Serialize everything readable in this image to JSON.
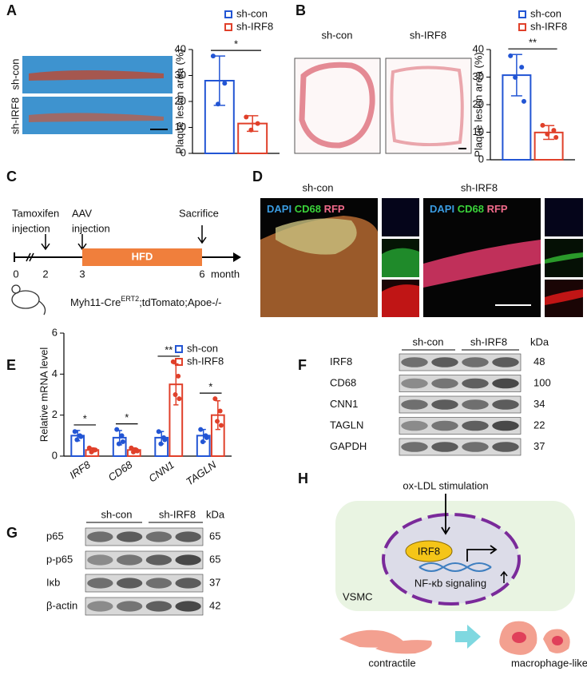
{
  "panel_labels": [
    "A",
    "B",
    "C",
    "D",
    "E",
    "F",
    "G",
    "H"
  ],
  "panel_a": {
    "image_labels": [
      "sh-con",
      "sh-IRF8"
    ]
  },
  "panel_b": {
    "image_labels": [
      "sh-con",
      "sh-IRF8"
    ]
  },
  "panel_c": {
    "events": [
      {
        "lines": [
          "Tamoxifen",
          "injection"
        ]
      },
      {
        "lines": [
          "AAV",
          "injection"
        ]
      },
      {
        "lines": [
          "Sacrifice"
        ]
      }
    ],
    "period": "HFD",
    "timepoints": [
      0,
      2,
      3,
      6
    ],
    "unit": "month",
    "genotype": [
      "Myh11-Cre",
      "ERT2",
      ";tdTomato;Apoe-/-"
    ]
  },
  "panel_d": {
    "groups": [
      "sh-con",
      "sh-IRF8"
    ],
    "stains": [
      "DAPI",
      "CD68",
      "RFP"
    ]
  },
  "panel_f": {
    "groups": [
      "sh-con",
      "sh-IRF8"
    ],
    "unit": "kDa",
    "rows": [
      {
        "label": "IRF8",
        "kda": 48
      },
      {
        "label": "CD68",
        "kda": 100
      },
      {
        "label": "CNN1",
        "kda": 34
      },
      {
        "label": "TAGLN",
        "kda": 22
      },
      {
        "label": "GAPDH",
        "kda": 37
      }
    ]
  },
  "panel_g": {
    "groups": [
      "sh-con",
      "sh-IRF8"
    ],
    "unit": "kDa",
    "rows": [
      {
        "label": "p65",
        "kda": 65
      },
      {
        "label": "p-p65",
        "kda": 65
      },
      {
        "label": "Iκb",
        "kda": 37
      },
      {
        "label": "β-actin",
        "kda": 42
      }
    ]
  },
  "panel_h": {
    "stimulus": "ox-LDL stimulation",
    "factor": "IRF8",
    "pathway": "NF-κb signaling",
    "cell": "VSMC",
    "states": [
      "contractile",
      "macrophage-like"
    ]
  },
  "chart_data": [
    {
      "type": "bar",
      "y_label": "Plaque lesion area (%)",
      "categories": [
        null
      ],
      "significance": [
        "*"
      ],
      "ylim": [
        0,
        40
      ],
      "yticks": [
        0,
        10,
        20,
        30,
        40
      ],
      "series": [
        {
          "name": "sh-con",
          "color": "#2255d4",
          "values": [
            28
          ],
          "errors": [
            9.5
          ],
          "points": [
            [
              37.5,
              27,
              19
            ]
          ]
        },
        {
          "name": "sh-IRF8",
          "color": "#e0402a",
          "values": [
            11.5
          ],
          "errors": [
            3
          ],
          "points": [
            [
              14,
              11.5,
              9
            ]
          ]
        }
      ]
    },
    {
      "type": "bar",
      "y_label": "Plaque lesion area (%)",
      "categories": [
        null
      ],
      "significance": [
        "**"
      ],
      "ylim": [
        0,
        40
      ],
      "yticks": [
        0,
        10,
        20,
        30,
        40
      ],
      "series": [
        {
          "name": "sh-con",
          "color": "#2255d4",
          "values": [
            30.7
          ],
          "errors": [
            7.5
          ],
          "points": [
            [
              37.7,
              33.6,
              29.9,
              21.2
            ]
          ]
        },
        {
          "name": "sh-IRF8",
          "color": "#e0402a",
          "values": [
            9.9
          ],
          "errors": [
            2.5
          ],
          "points": [
            [
              12.5,
              10.7,
              9.3,
              8.1
            ]
          ]
        }
      ]
    },
    {
      "type": "bar",
      "y_label": "Relative mRNA level",
      "categories": [
        "IRF8",
        "CD68",
        "CNN1",
        "TAGLN"
      ],
      "significance": [
        "*",
        "*",
        "**",
        "*"
      ],
      "ylim": [
        0,
        6
      ],
      "yticks": [
        0,
        2,
        4,
        6
      ],
      "series": [
        {
          "name": "sh-con",
          "color": "#2255d4",
          "values": [
            1.0,
            0.9,
            0.9,
            1.0
          ],
          "errors": [
            0.25,
            0.35,
            0.3,
            0.3
          ],
          "points": [
            [
              1.2,
              1.0,
              0.8,
              0.95
            ],
            [
              1.3,
              1.0,
              0.6,
              0.7
            ],
            [
              1.2,
              0.9,
              0.6,
              0.8
            ],
            [
              1.3,
              1.0,
              0.7,
              0.9
            ]
          ]
        },
        {
          "name": "sh-IRF8",
          "color": "#e0402a",
          "values": [
            0.3,
            0.3,
            3.5,
            2.0
          ],
          "errors": [
            0.1,
            0.1,
            1.0,
            0.7
          ],
          "points": [
            [
              0.4,
              0.3,
              0.2,
              0.3
            ],
            [
              0.4,
              0.3,
              0.2,
              0.25
            ],
            [
              4.6,
              3.9,
              3.0,
              2.8
            ],
            [
              2.8,
              2.2,
              1.7,
              1.5
            ]
          ]
        }
      ]
    }
  ]
}
